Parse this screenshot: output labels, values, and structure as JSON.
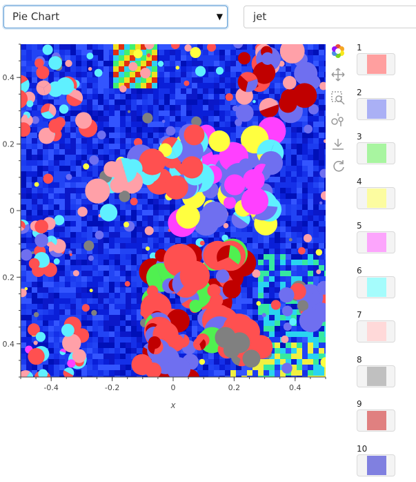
{
  "controls": {
    "chart_type": "Pie Chart",
    "colormap": "jet"
  },
  "chart_data": {
    "type": "heatmap",
    "xlabel": "x",
    "ylabel": "",
    "xlim": [
      -0.5,
      0.5
    ],
    "ylim": [
      -0.5,
      0.5
    ],
    "x_ticks": [
      "-0.4",
      "-0.2",
      "0",
      "0.2",
      "0.4"
    ],
    "y_ticks": [
      "0.4",
      "0.2",
      "0",
      "0.2",
      "0.4"
    ],
    "overlay": "pie glyphs",
    "colormap": "jet"
  },
  "toolbar": {
    "tools": [
      "bokeh-logo-icon",
      "pan-icon",
      "box-zoom-icon",
      "hover-icon",
      "save-icon",
      "reset-icon"
    ]
  },
  "palette": [
    {
      "label": "1",
      "color": "#ff9f9f"
    },
    {
      "label": "2",
      "color": "#aab0f5"
    },
    {
      "label": "3",
      "color": "#a8f5a0"
    },
    {
      "label": "4",
      "color": "#fcfca0"
    },
    {
      "label": "5",
      "color": "#fca5fc"
    },
    {
      "label": "6",
      "color": "#a5fcfc"
    },
    {
      "label": "7",
      "color": "#ffd9d9"
    },
    {
      "label": "8",
      "color": "#c0c0c0"
    },
    {
      "label": "9",
      "color": "#e08080"
    },
    {
      "label": "10",
      "color": "#8080e0"
    }
  ]
}
